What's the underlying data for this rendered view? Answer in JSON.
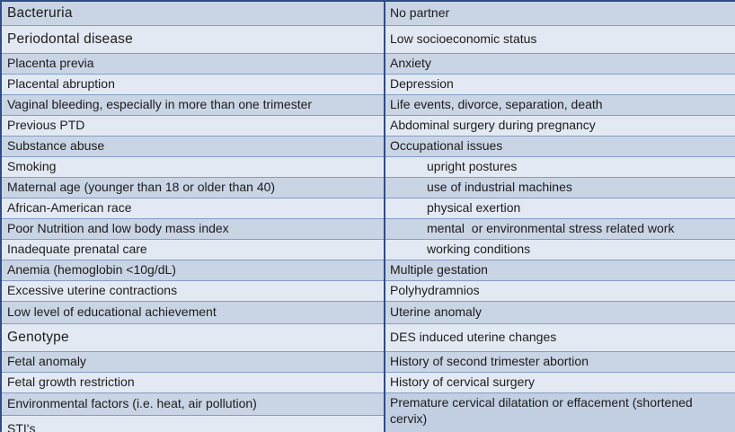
{
  "colors": {
    "row_dark": "#c9d4e5",
    "row_light": "#e3e9f3",
    "border_outer": "#2f4d87",
    "border_inner": "#839dc6",
    "text": "#1c1c1c"
  },
  "table": {
    "rows": [
      {
        "left": "Bacteruria",
        "right": "No partner"
      },
      {
        "left": "Periodontal disease",
        "right": "Low socioeconomic status"
      },
      {
        "left": "Placenta previa",
        "right": "Anxiety"
      },
      {
        "left": "Placental abruption",
        "right": "Depression"
      },
      {
        "left": "Vaginal bleeding, especially in more than one trimester",
        "right": "Life events, divorce, separation, death"
      },
      {
        "left": "Previous PTD",
        "right": "Abdominal surgery during pregnancy"
      },
      {
        "left": "Substance abuse",
        "right": "Occupational issues"
      },
      {
        "left": "Smoking",
        "right": "upright postures"
      },
      {
        "left": "Maternal age (younger than 18 or older than 40)",
        "right": "use of industrial machines"
      },
      {
        "left": "African-American race",
        "right": "physical exertion"
      },
      {
        "left": "Poor Nutrition and low body mass index",
        "right": "mental  or environmental stress related work"
      },
      {
        "left": "Inadequate prenatal care",
        "right": "working conditions"
      },
      {
        "left": "Anemia (hemoglobin <10g/dL)",
        "right": "Multiple gestation"
      },
      {
        "left": "Excessive uterine contractions",
        "right": "Polyhydramnios"
      },
      {
        "left": "Low level of educational achievement",
        "right": "Uterine anomaly"
      },
      {
        "left": "Genotype",
        "right": "DES induced uterine changes"
      },
      {
        "left": "Fetal anomaly",
        "right": "History of second trimester abortion"
      },
      {
        "left": "Fetal growth restriction",
        "right": "History of cervical surgery"
      },
      {
        "left": "Environmental factors (i.e. heat, air pollution)",
        "right": "Premature cervical dilatation or effacement (shortened cervix)"
      },
      {
        "left": "STI's",
        "right": null
      }
    ]
  }
}
